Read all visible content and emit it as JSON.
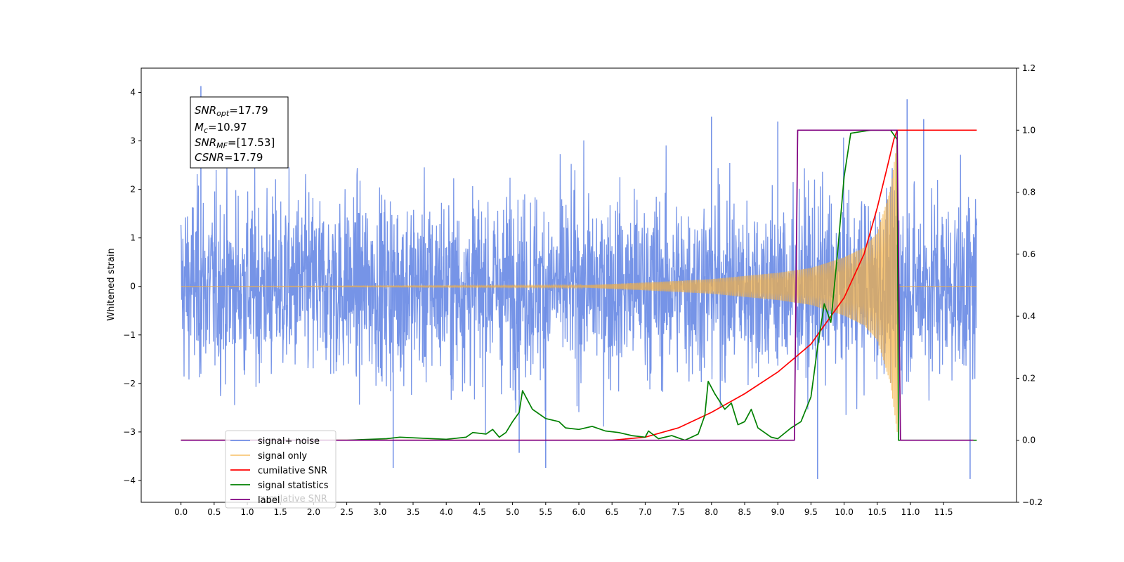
{
  "chart_data": {
    "type": "line",
    "ylabel": "Whitened strain",
    "x_ticks": [
      "0.0",
      "0.5",
      "1.0",
      "1.5",
      "2.0",
      "2.5",
      "3.0",
      "3.5",
      "4.0",
      "4.5",
      "5.0",
      "5.5",
      "6.0",
      "6.5",
      "7.0",
      "7.5",
      "8.0",
      "8.5",
      "9.0",
      "9.5",
      "10.0",
      "10.5",
      "11.0",
      "11.5"
    ],
    "x_tick_values": [
      0,
      0.5,
      1,
      1.5,
      2,
      2.5,
      3,
      3.5,
      4,
      4.5,
      5,
      5.5,
      6,
      6.5,
      7,
      7.5,
      8,
      8.5,
      9,
      9.5,
      10,
      10.5,
      11,
      11.5
    ],
    "xlim": [
      -0.6,
      12.6
    ],
    "y_left_ticks": [
      "−4",
      "−3",
      "−2",
      "−1",
      "0",
      "1",
      "2",
      "3",
      "4"
    ],
    "y_left_tick_values": [
      -4,
      -3,
      -2,
      -1,
      0,
      1,
      2,
      3,
      4
    ],
    "ylim_left": [
      -4.45,
      4.5
    ],
    "y_right_ticks": [
      "−0.2",
      "0.0",
      "0.2",
      "0.4",
      "0.6",
      "0.8",
      "1.0",
      "1.2"
    ],
    "y_right_tick_values": [
      -0.2,
      0,
      0.2,
      0.4,
      0.6,
      0.8,
      1.0,
      1.2
    ],
    "ylim_right": [
      -0.2,
      1.2
    ],
    "annotation": {
      "snr_opt": "=17.79",
      "mc": "=10.97",
      "snr_mf": "=[17.53]",
      "csnr": "=17.79"
    },
    "legend": {
      "placement": "lower-left",
      "entries": [
        "signal+ noise",
        "signal only",
        "cumilative SNR",
        "signal statistics",
        "label"
      ],
      "ghost_text": "cumilative SNR"
    },
    "series": [
      {
        "name": "signal+ noise",
        "axis": "left",
        "color": "#6f8ee6",
        "style": "noise",
        "x_range": [
          0,
          12.0
        ],
        "spread": 1.0,
        "peaks": [
          [
            0.3,
            4.13
          ],
          [
            10.95,
            3.86
          ],
          [
            11.2,
            3.45
          ],
          [
            9.6,
            -3.97
          ],
          [
            11.9,
            -3.97
          ],
          [
            3.2,
            -3.74
          ],
          [
            5.5,
            -3.74
          ],
          [
            5.1,
            -3.43
          ],
          [
            8.0,
            3.5
          ],
          [
            9.0,
            3.4
          ]
        ]
      },
      {
        "name": "signal only",
        "axis": "left",
        "color": "#f5b041",
        "style": "chirp",
        "x_range": [
          0,
          12.0
        ],
        "envelope": [
          [
            0,
            0
          ],
          [
            6.0,
            0.02
          ],
          [
            7.0,
            0.08
          ],
          [
            8.0,
            0.15
          ],
          [
            9.0,
            0.28
          ],
          [
            9.5,
            0.38
          ],
          [
            10.0,
            0.6
          ],
          [
            10.3,
            0.8
          ],
          [
            10.5,
            1.1
          ],
          [
            10.7,
            2.0
          ],
          [
            10.8,
            3.0
          ],
          [
            10.82,
            0
          ]
        ]
      },
      {
        "name": "cumilative SNR",
        "axis": "right",
        "color": "#ff0000",
        "style": "line",
        "points": [
          [
            0,
            0
          ],
          [
            6.5,
            0.0
          ],
          [
            7.0,
            0.01
          ],
          [
            7.5,
            0.04
          ],
          [
            8.0,
            0.09
          ],
          [
            8.5,
            0.15
          ],
          [
            9.0,
            0.22
          ],
          [
            9.5,
            0.31
          ],
          [
            10.0,
            0.46
          ],
          [
            10.3,
            0.6
          ],
          [
            10.5,
            0.75
          ],
          [
            10.65,
            0.88
          ],
          [
            10.75,
            0.97
          ],
          [
            10.8,
            1.0
          ],
          [
            12.0,
            1.0
          ]
        ]
      },
      {
        "name": "signal statistics",
        "axis": "right",
        "color": "#008000",
        "style": "line",
        "points": [
          [
            0,
            0
          ],
          [
            2.5,
            0
          ],
          [
            3.1,
            0.005
          ],
          [
            3.3,
            0.01
          ],
          [
            4.0,
            0.003
          ],
          [
            4.3,
            0.01
          ],
          [
            4.4,
            0.025
          ],
          [
            4.6,
            0.02
          ],
          [
            4.7,
            0.035
          ],
          [
            4.8,
            0.01
          ],
          [
            4.9,
            0.025
          ],
          [
            5.0,
            0.06
          ],
          [
            5.1,
            0.09
          ],
          [
            5.15,
            0.16
          ],
          [
            5.3,
            0.1
          ],
          [
            5.5,
            0.07
          ],
          [
            5.7,
            0.06
          ],
          [
            5.8,
            0.04
          ],
          [
            6.0,
            0.035
          ],
          [
            6.2,
            0.045
          ],
          [
            6.4,
            0.03
          ],
          [
            6.6,
            0.025
          ],
          [
            6.8,
            0.015
          ],
          [
            7.0,
            0.01
          ],
          [
            7.05,
            0.03
          ],
          [
            7.2,
            0.005
          ],
          [
            7.4,
            0.015
          ],
          [
            7.6,
            0.0
          ],
          [
            7.8,
            0.02
          ],
          [
            7.9,
            0.08
          ],
          [
            7.95,
            0.19
          ],
          [
            8.05,
            0.15
          ],
          [
            8.2,
            0.1
          ],
          [
            8.3,
            0.12
          ],
          [
            8.4,
            0.05
          ],
          [
            8.5,
            0.06
          ],
          [
            8.6,
            0.1
          ],
          [
            8.7,
            0.04
          ],
          [
            8.9,
            0.01
          ],
          [
            9.0,
            0.005
          ],
          [
            9.2,
            0.04
          ],
          [
            9.35,
            0.06
          ],
          [
            9.5,
            0.14
          ],
          [
            9.6,
            0.3
          ],
          [
            9.7,
            0.44
          ],
          [
            9.8,
            0.38
          ],
          [
            9.9,
            0.6
          ],
          [
            10.0,
            0.85
          ],
          [
            10.1,
            0.99
          ],
          [
            10.4,
            1.0
          ],
          [
            10.7,
            1.0
          ],
          [
            10.8,
            0.97
          ],
          [
            10.82,
            0
          ],
          [
            12.0,
            0
          ]
        ]
      },
      {
        "name": "label",
        "axis": "right",
        "color": "#800080",
        "style": "line",
        "points": [
          [
            0,
            0
          ],
          [
            9.25,
            0
          ],
          [
            9.3,
            1.0
          ],
          [
            10.8,
            1.0
          ],
          [
            10.85,
            0
          ],
          [
            11.95,
            0
          ]
        ]
      }
    ]
  }
}
